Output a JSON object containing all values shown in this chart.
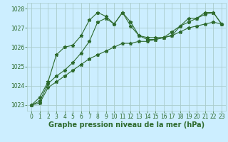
{
  "xlabel": "Graphe pression niveau de la mer (hPa)",
  "bg_color": "#cceeff",
  "grid_color": "#aacccc",
  "line_color": "#2d6a2d",
  "marker": "*",
  "xlim": [
    -0.5,
    23.5
  ],
  "ylim": [
    1022.7,
    1028.3
  ],
  "yticks": [
    1023,
    1024,
    1025,
    1026,
    1027,
    1028
  ],
  "xticks": [
    0,
    1,
    2,
    3,
    4,
    5,
    6,
    7,
    8,
    9,
    10,
    11,
    12,
    13,
    14,
    15,
    16,
    17,
    18,
    19,
    20,
    21,
    22,
    23
  ],
  "series1": {
    "x": [
      0,
      1,
      2,
      3,
      4,
      5,
      6,
      7,
      8,
      9,
      10,
      11,
      12,
      13,
      14,
      15,
      16,
      17,
      18,
      19,
      20,
      21,
      22,
      23
    ],
    "y": [
      1023.0,
      1023.4,
      1024.2,
      1025.6,
      1026.0,
      1026.1,
      1026.6,
      1027.4,
      1027.8,
      1027.6,
      1027.2,
      1027.8,
      1027.3,
      1026.6,
      1026.5,
      1026.5,
      1026.5,
      1026.6,
      1027.1,
      1027.5,
      1027.5,
      1027.8,
      1027.8,
      1027.2
    ]
  },
  "series2": {
    "x": [
      0,
      1,
      2,
      3,
      4,
      5,
      6,
      7,
      8,
      9,
      10,
      11,
      12,
      13,
      14,
      15,
      16,
      17,
      18,
      19,
      20,
      21,
      22,
      23
    ],
    "y": [
      1023.0,
      1023.2,
      1024.1,
      1024.5,
      1024.8,
      1025.2,
      1025.7,
      1026.3,
      1027.3,
      1027.5,
      1027.2,
      1027.8,
      1027.1,
      1026.6,
      1026.4,
      1026.4,
      1026.5,
      1026.8,
      1027.1,
      1027.3,
      1027.5,
      1027.7,
      1027.8,
      1027.2
    ]
  },
  "series3": {
    "x": [
      0,
      1,
      2,
      3,
      4,
      5,
      6,
      7,
      8,
      9,
      10,
      11,
      12,
      13,
      14,
      15,
      16,
      17,
      18,
      19,
      20,
      21,
      22,
      23
    ],
    "y": [
      1023.0,
      1023.1,
      1023.9,
      1024.2,
      1024.5,
      1024.8,
      1025.1,
      1025.4,
      1025.6,
      1025.8,
      1026.0,
      1026.2,
      1026.2,
      1026.3,
      1026.3,
      1026.4,
      1026.5,
      1026.6,
      1026.8,
      1027.0,
      1027.1,
      1027.2,
      1027.3,
      1027.2
    ]
  },
  "label_fontsize": 7,
  "tick_fontsize": 5.5,
  "label_fontweight": "bold"
}
